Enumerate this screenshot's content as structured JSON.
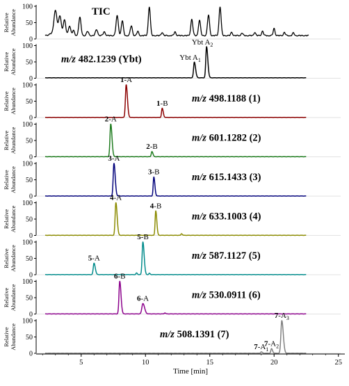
{
  "chart_data": {
    "type": "line",
    "xlabel": "Time [min]",
    "ylabel": "Relative Abundance",
    "xlim": [
      1.5,
      25.5
    ],
    "ylim": [
      0,
      100
    ],
    "x_ticks": [
      "5",
      "10",
      "15",
      "20",
      "25"
    ],
    "y_ticks": [
      "0",
      "50",
      "100"
    ],
    "panels": [
      {
        "name": "TIC",
        "color": "#000000",
        "label": "TIC",
        "peaks": [
          {
            "x": 2.6,
            "h": 6,
            "w": 0.12
          },
          {
            "x": 3.0,
            "h": 78,
            "w": 0.12
          },
          {
            "x": 3.35,
            "h": 60,
            "w": 0.1
          },
          {
            "x": 3.7,
            "h": 48,
            "w": 0.1
          },
          {
            "x": 4.1,
            "h": 30,
            "w": 0.09
          },
          {
            "x": 4.4,
            "h": 15,
            "w": 0.08
          },
          {
            "x": 4.9,
            "h": 55,
            "w": 0.09
          },
          {
            "x": 5.5,
            "h": 13,
            "w": 0.08
          },
          {
            "x": 6.2,
            "h": 18,
            "w": 0.09
          },
          {
            "x": 6.8,
            "h": 12,
            "w": 0.08
          },
          {
            "x": 7.8,
            "h": 60,
            "w": 0.09
          },
          {
            "x": 8.2,
            "h": 45,
            "w": 0.08
          },
          {
            "x": 8.9,
            "h": 30,
            "w": 0.08
          },
          {
            "x": 9.4,
            "h": 13,
            "w": 0.07
          },
          {
            "x": 10.3,
            "h": 88,
            "w": 0.08
          },
          {
            "x": 11.3,
            "h": 10,
            "w": 0.07
          },
          {
            "x": 12.3,
            "h": 12,
            "w": 0.07
          },
          {
            "x": 13.6,
            "h": 50,
            "w": 0.08
          },
          {
            "x": 14.2,
            "h": 47,
            "w": 0.08
          },
          {
            "x": 14.9,
            "h": 63,
            "w": 0.08
          },
          {
            "x": 15.8,
            "h": 88,
            "w": 0.08
          },
          {
            "x": 16.7,
            "h": 10,
            "w": 0.07
          },
          {
            "x": 17.5,
            "h": 8,
            "w": 0.07
          },
          {
            "x": 18.5,
            "h": 10,
            "w": 0.07
          },
          {
            "x": 19.1,
            "h": 14,
            "w": 0.07
          },
          {
            "x": 20.0,
            "h": 22,
            "w": 0.07
          },
          {
            "x": 20.8,
            "h": 10,
            "w": 0.07
          },
          {
            "x": 21.5,
            "h": 8,
            "w": 0.07
          }
        ],
        "baseline": 9,
        "end_x": 22.7,
        "annotations": []
      },
      {
        "name": "Ybt",
        "color": "#000000",
        "label_mz": "m/z",
        "label_value": " 482.1239 (Ybt)",
        "peaks": [
          {
            "x": 13.8,
            "h": 48,
            "w": 0.06
          },
          {
            "x": 14.75,
            "h": 95,
            "w": 0.06
          }
        ],
        "baseline": 1,
        "end_x": 22.5,
        "annotations": [
          {
            "prefix": "Ybt A",
            "sub": "1",
            "x": 13.8,
            "h": 48
          },
          {
            "prefix": "Ybt A",
            "sub": "2",
            "x": 14.75,
            "h": 95
          }
        ]
      },
      {
        "name": "1",
        "color": "#8b0000",
        "label_mz": "m/z",
        "label_value": " 498.1188 (1)",
        "peaks": [
          {
            "x": 8.5,
            "h": 100,
            "w": 0.06
          },
          {
            "x": 11.3,
            "h": 28,
            "w": 0.05
          }
        ],
        "baseline": 0,
        "end_x": 22.5,
        "annotations": [
          {
            "compound": "1",
            "suffix": "-A",
            "x": 8.5,
            "h": 100
          },
          {
            "compound": "1",
            "suffix": "-B",
            "x": 11.3,
            "h": 28
          }
        ]
      },
      {
        "name": "2",
        "color": "#1e7b1e",
        "label_mz": "m/z",
        "label_value": " 601.1282 (2)",
        "peaks": [
          {
            "x": 7.3,
            "h": 100,
            "w": 0.06
          },
          {
            "x": 10.5,
            "h": 16,
            "w": 0.05
          }
        ],
        "baseline": 0,
        "end_x": 22.5,
        "annotations": [
          {
            "compound": "2",
            "suffix": "-A",
            "x": 7.3,
            "h": 100
          },
          {
            "compound": "2",
            "suffix": "-B",
            "x": 10.5,
            "h": 16
          }
        ]
      },
      {
        "name": "3",
        "color": "#00007a",
        "label_mz": "m/z",
        "label_value": " 615.1433 (3)",
        "peaks": [
          {
            "x": 7.55,
            "h": 100,
            "w": 0.06
          },
          {
            "x": 10.65,
            "h": 58,
            "w": 0.05
          }
        ],
        "baseline": 0,
        "end_x": 22.5,
        "annotations": [
          {
            "compound": "3",
            "suffix": "-A",
            "x": 7.55,
            "h": 100
          },
          {
            "compound": "3",
            "suffix": "-B",
            "x": 10.65,
            "h": 58
          }
        ]
      },
      {
        "name": "4",
        "color": "#8b8b00",
        "label_mz": "m/z",
        "label_value": " 633.1003 (4)",
        "peaks": [
          {
            "x": 7.7,
            "h": 100,
            "w": 0.06
          },
          {
            "x": 10.8,
            "h": 75,
            "w": 0.05
          },
          {
            "x": 12.8,
            "h": 5,
            "w": 0.04
          }
        ],
        "baseline": 0,
        "end_x": 22.5,
        "annotations": [
          {
            "compound": "4",
            "suffix": "-A",
            "x": 7.7,
            "h": 100
          },
          {
            "compound": "4",
            "suffix": "-B",
            "x": 10.8,
            "h": 75
          }
        ]
      },
      {
        "name": "5",
        "color": "#008b8b",
        "label_mz": "m/z",
        "label_value": " 587.1127 (5)",
        "peaks": [
          {
            "x": 6.0,
            "h": 35,
            "w": 0.06
          },
          {
            "x": 9.8,
            "h": 100,
            "w": 0.06
          },
          {
            "x": 9.3,
            "h": 5,
            "w": 0.04
          },
          {
            "x": 10.3,
            "h": 4,
            "w": 0.04
          }
        ],
        "baseline": 0,
        "end_x": 22.5,
        "annotations": [
          {
            "compound": "5",
            "suffix": "-A",
            "x": 6.0,
            "h": 35
          },
          {
            "compound": "5",
            "suffix": "-B",
            "x": 9.8,
            "h": 100
          }
        ]
      },
      {
        "name": "6",
        "color": "#8b008b",
        "label_mz": "m/z",
        "label_value": " 530.0911 (6)",
        "peaks": [
          {
            "x": 8.0,
            "h": 100,
            "w": 0.06
          },
          {
            "x": 9.8,
            "h": 32,
            "w": 0.08
          },
          {
            "x": 11.5,
            "h": 3,
            "w": 0.04
          }
        ],
        "baseline": 0,
        "end_x": 22.5,
        "annotations": [
          {
            "compound": "6",
            "suffix": "-B",
            "x": 8.0,
            "h": 100
          },
          {
            "compound": "6",
            "suffix": "-A",
            "x": 9.8,
            "h": 32
          }
        ]
      },
      {
        "name": "7",
        "color": "#808080",
        "label_mz": "m/z",
        "label_value": " 508.1391 (7)",
        "peaks": [
          {
            "x": 19.0,
            "h": 4,
            "w": 0.05
          },
          {
            "x": 19.8,
            "h": 14,
            "w": 0.05
          },
          {
            "x": 20.6,
            "h": 100,
            "w": 0.07
          }
        ],
        "baseline": 0,
        "end_x": 22.5,
        "annotations": [
          {
            "compound": "7",
            "suffix": "-A",
            "sub": "1",
            "x": 19.0,
            "h": 4
          },
          {
            "compound": "7",
            "suffix": "-A",
            "sub": "2",
            "x": 19.8,
            "h": 14
          },
          {
            "compound": "7",
            "suffix": "-A",
            "sub": "3",
            "x": 20.6,
            "h": 100
          }
        ]
      }
    ]
  }
}
